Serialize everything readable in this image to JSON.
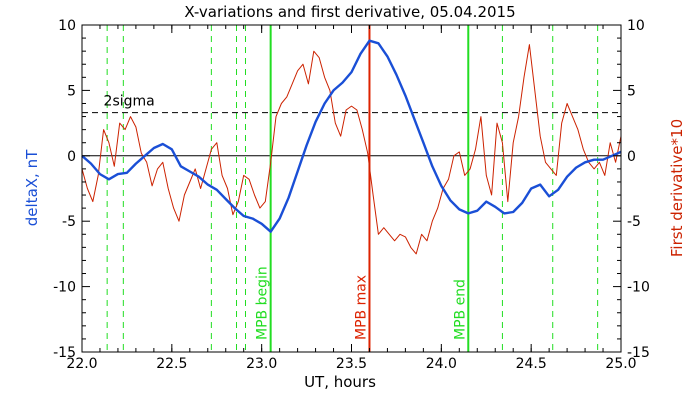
{
  "chart_data": {
    "type": "line",
    "title": "X-variations and first derivative, 05.04.2015",
    "xlabel": "UT, hours",
    "ylabel_left": "deltaX, nT",
    "ylabel_right": "First derivative*10",
    "xlim": [
      22.0,
      25.0
    ],
    "ylim_left": [
      -15,
      10
    ],
    "ylim_right": [
      -15,
      10
    ],
    "x_ticks": [
      "22.0",
      "22.5",
      "23.0",
      "23.5",
      "24.0",
      "24.5",
      "25.0"
    ],
    "y_ticks": [
      "-15",
      "-10",
      "-5",
      "0",
      "5",
      "10"
    ],
    "sigma_label": "2sigma",
    "sigma_level": 3.3,
    "zero_level": 0,
    "colors": {
      "deltaX": "#1a4fd6",
      "derivative": "#cc2200",
      "markers": "#22dd22",
      "mpb_max": "#dd2200",
      "axis": "#000000"
    },
    "vlines_dashed": [
      22.14,
      22.23,
      22.72,
      22.86,
      22.91,
      24.34,
      24.62,
      24.87
    ],
    "mpb_markers": [
      {
        "x": 23.05,
        "label": "MPB begin",
        "color": "#22dd22"
      },
      {
        "x": 23.6,
        "label": "MPB max",
        "color": "#dd2200"
      },
      {
        "x": 24.15,
        "label": "MPB end",
        "color": "#22dd22"
      }
    ],
    "series": [
      {
        "name": "deltaX",
        "axis": "left",
        "x": [
          22.0,
          22.05,
          22.1,
          22.15,
          22.2,
          22.25,
          22.3,
          22.35,
          22.4,
          22.45,
          22.5,
          22.55,
          22.6,
          22.65,
          22.7,
          22.75,
          22.8,
          22.85,
          22.9,
          22.95,
          23.0,
          23.05,
          23.1,
          23.15,
          23.2,
          23.25,
          23.3,
          23.35,
          23.4,
          23.45,
          23.5,
          23.55,
          23.6,
          23.65,
          23.7,
          23.75,
          23.8,
          23.85,
          23.9,
          23.95,
          24.0,
          24.05,
          24.1,
          24.15,
          24.2,
          24.25,
          24.3,
          24.35,
          24.4,
          24.45,
          24.5,
          24.55,
          24.6,
          24.65,
          24.7,
          24.75,
          24.8,
          24.85,
          24.9,
          24.95,
          25.0
        ],
        "values": [
          0.0,
          -0.6,
          -1.4,
          -1.8,
          -1.4,
          -1.3,
          -0.6,
          0.0,
          0.6,
          0.9,
          0.5,
          -0.8,
          -1.2,
          -1.6,
          -2.2,
          -2.6,
          -3.3,
          -4.0,
          -4.6,
          -4.8,
          -5.2,
          -5.8,
          -4.8,
          -3.2,
          -1.2,
          0.8,
          2.6,
          4.0,
          5.0,
          5.6,
          6.4,
          7.8,
          8.8,
          8.6,
          7.6,
          6.2,
          4.6,
          2.8,
          1.0,
          -0.8,
          -2.3,
          -3.4,
          -4.1,
          -4.4,
          -4.2,
          -3.5,
          -3.9,
          -4.4,
          -4.3,
          -3.6,
          -2.5,
          -2.2,
          -3.1,
          -2.6,
          -1.6,
          -0.9,
          -0.5,
          -0.3,
          -0.3,
          0.0,
          0.3
        ]
      },
      {
        "name": "First derivative*10",
        "axis": "right",
        "x": [
          22.0,
          22.03,
          22.06,
          22.09,
          22.12,
          22.15,
          22.18,
          22.21,
          22.24,
          22.27,
          22.3,
          22.33,
          22.36,
          22.39,
          22.42,
          22.45,
          22.48,
          22.51,
          22.54,
          22.57,
          22.6,
          22.63,
          22.66,
          22.69,
          22.72,
          22.75,
          22.78,
          22.81,
          22.84,
          22.87,
          22.9,
          22.93,
          22.96,
          22.99,
          23.02,
          23.05,
          23.08,
          23.11,
          23.14,
          23.17,
          23.2,
          23.23,
          23.26,
          23.29,
          23.32,
          23.35,
          23.38,
          23.41,
          23.44,
          23.47,
          23.5,
          23.53,
          23.56,
          23.59,
          23.62,
          23.65,
          23.68,
          23.71,
          23.74,
          23.77,
          23.8,
          23.83,
          23.86,
          23.89,
          23.92,
          23.95,
          23.98,
          24.01,
          24.04,
          24.07,
          24.1,
          24.13,
          24.16,
          24.19,
          24.22,
          24.25,
          24.28,
          24.31,
          24.34,
          24.37,
          24.4,
          24.43,
          24.46,
          24.49,
          24.52,
          24.55,
          24.58,
          24.61,
          24.64,
          24.67,
          24.7,
          24.73,
          24.76,
          24.79,
          24.82,
          24.85,
          24.88,
          24.91,
          24.94,
          24.97,
          25.0
        ],
        "values": [
          -1.0,
          -2.5,
          -3.5,
          -1.5,
          2.0,
          1.0,
          -0.8,
          2.5,
          2.0,
          3.0,
          2.2,
          0.2,
          -0.5,
          -2.3,
          -1.0,
          -0.5,
          -2.5,
          -4.0,
          -5.0,
          -3.0,
          -2.0,
          -1.0,
          -2.5,
          -1.0,
          0.5,
          1.0,
          -1.5,
          -2.5,
          -4.5,
          -3.5,
          -1.5,
          -1.8,
          -3.0,
          -4.0,
          -3.5,
          -0.5,
          3.0,
          4.0,
          4.5,
          5.5,
          6.5,
          7.0,
          5.5,
          8.0,
          7.5,
          6.0,
          5.0,
          2.5,
          1.5,
          3.5,
          3.8,
          3.5,
          2.0,
          0.2,
          -3.0,
          -6.0,
          -5.5,
          -6.0,
          -6.5,
          -6.0,
          -6.2,
          -7.0,
          -7.5,
          -6.0,
          -6.5,
          -5.0,
          -4.0,
          -2.5,
          -1.8,
          0.0,
          0.3,
          -1.5,
          -1.0,
          0.5,
          3.0,
          -1.5,
          -3.0,
          2.5,
          1.0,
          -3.5,
          1.0,
          3.0,
          6.0,
          8.5,
          5.0,
          1.5,
          -0.5,
          -1.0,
          -1.5,
          2.5,
          4.0,
          3.0,
          2.0,
          0.5,
          -0.5,
          -1.0,
          -0.5,
          -1.5,
          1.0,
          -0.5,
          1.5
        ]
      }
    ]
  }
}
